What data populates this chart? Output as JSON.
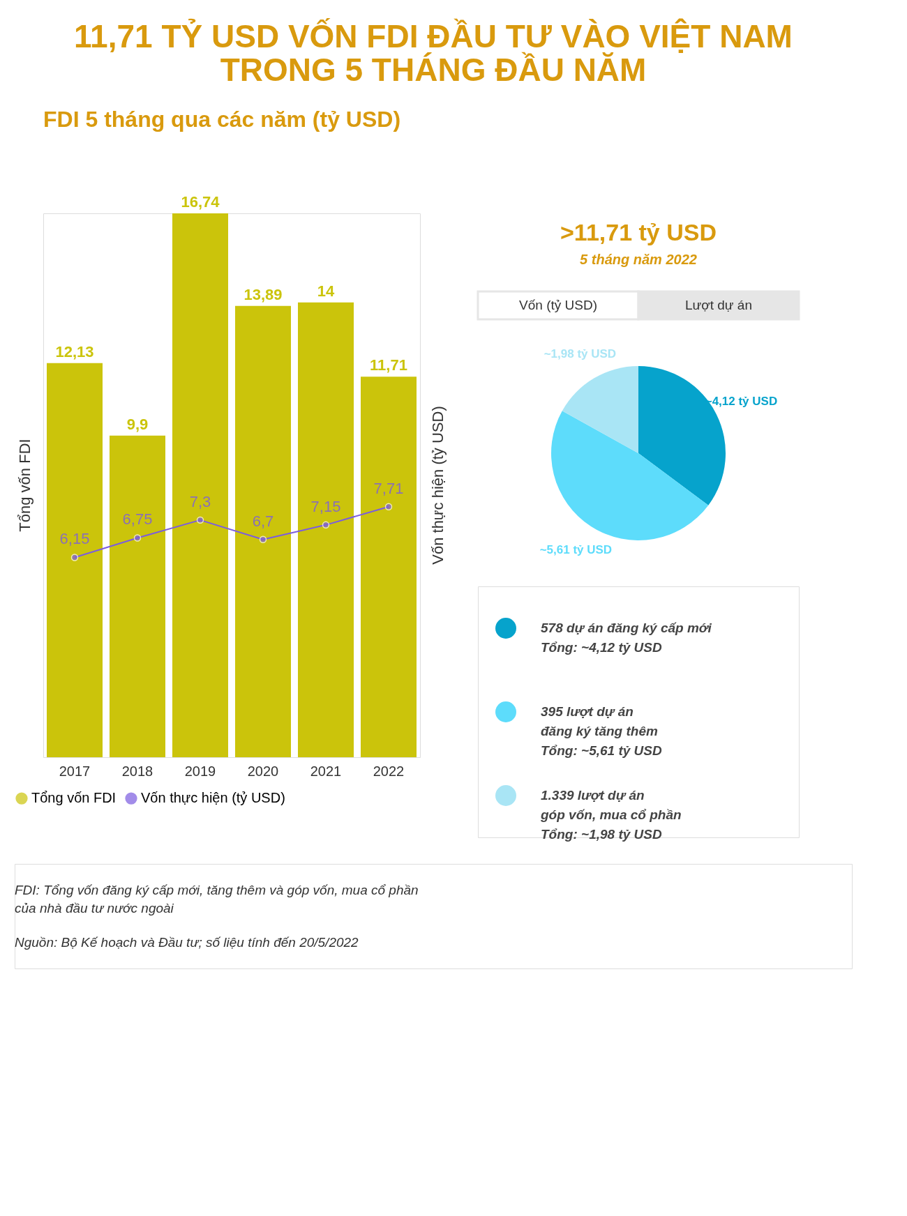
{
  "chart_data": [
    {
      "type": "bar",
      "title": "11,71 TỶ USD VỐN FDI ĐẦU TƯ VÀO VIỆT NAM\nTRONG 5 THÁNG ĐẦU NĂM",
      "subtitle": "FDI 5 tháng qua các năm (tỷ USD)",
      "ylabel": "Tổng vốn FDI",
      "y2label": "Vốn thực hiện (tỷ USD)",
      "categories": [
        "2017",
        "2018",
        "2019",
        "2020",
        "2021",
        "2022"
      ],
      "series": [
        {
          "name": "Tổng vốn FDI",
          "color": "#cbc40b",
          "values": [
            12.13,
            9.9,
            16.74,
            13.89,
            14,
            11.71
          ],
          "value_labels": [
            "12,13",
            "9,9",
            "16,74",
            "13,89",
            "14",
            "11,71"
          ]
        },
        {
          "name": "Vốn thực hiện (tỷ USD)",
          "type": "line",
          "color": "#7b5ce0",
          "values": [
            6.15,
            6.75,
            7.3,
            6.7,
            7.15,
            7.71
          ],
          "value_labels": [
            "6,15",
            "6,75",
            "7,3",
            "6,7",
            "7,15",
            "7,71"
          ]
        }
      ],
      "marker": "circle",
      "legend": "bottom",
      "annotations": [
        "FDI: Tổng vốn đăng ký cấp mới, tăng thêm và góp vốn, mua cổ phần\ncủa nhà đầu tư nước ngoài",
        "Nguồn: Bộ Kế hoạch và Đầu tư; số liệu tính đến 20/5/2022"
      ]
    },
    {
      "type": "pie",
      "title": ">11,71 tỷ USD",
      "subtitle": "5 tháng năm 2022",
      "categories": [
        "578 dự án đăng ký cấp mới\nTổng: ~4,12 tỷ USD",
        "395 lượt dự án\nđăng ký tăng thêm\nTổng: ~5,61 tỷ USD",
        "1.339 lượt dự án\ngóp vốn, mua cổ phần\nTổng: ~1,98 tỷ USD"
      ],
      "values": [
        4.12,
        5.61,
        1.98
      ],
      "value_labels": [
        "~4,12 tỷ USD",
        "~5,61 tỷ USD",
        "~1,98 tỷ USD"
      ],
      "colors": [
        "#06a3cc",
        "#5ddcfb",
        "#a9e5f5"
      ],
      "legend": "bottom",
      "annotations": [
        "Vốn (tỷ USD)",
        "Lượt dự án"
      ]
    }
  ]
}
